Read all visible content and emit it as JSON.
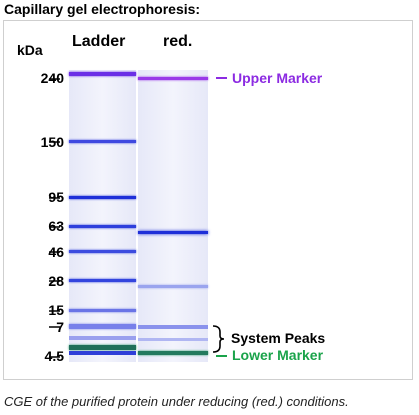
{
  "title": "Capillary gel electrophoresis:",
  "headers": {
    "kda": "kDa",
    "ladder": "Ladder",
    "reduced": "red."
  },
  "mw_markers": [
    "240",
    "150",
    "95",
    "63",
    "46",
    "28",
    "15",
    "7",
    "4.5"
  ],
  "annotations": {
    "upper_marker": "Upper Marker",
    "system_peaks": "System Peaks",
    "lower_marker": "Lower Marker"
  },
  "caption": "CGE of the purified protein under reducing (red.) conditions.",
  "colors": {
    "upper_marker": "#8c2be2",
    "lower_marker": "#1aa34a",
    "band_blue": "#2a3ee0",
    "system_peaks": "#000000"
  }
}
